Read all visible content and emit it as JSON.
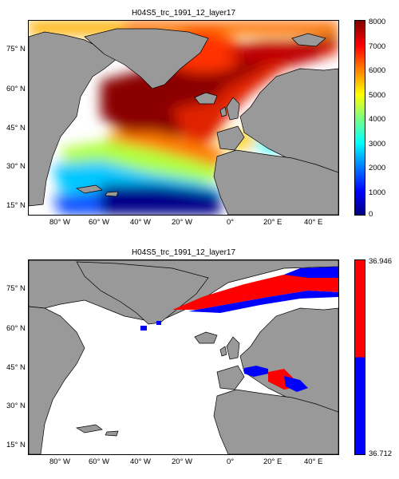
{
  "top_panel": {
    "title": "H04S5_trc_1991_12_layer17",
    "colorbar_ticks": [
      "8000",
      "7000",
      "6000",
      "5000",
      "4000",
      "3000",
      "2000",
      "1000",
      "0"
    ],
    "colorbar_range": [
      0,
      8000
    ],
    "colorbar_colors": [
      "#00007f",
      "#0000ff",
      "#007fff",
      "#00ffff",
      "#7fff7f",
      "#ffff00",
      "#ff7f00",
      "#ff0000",
      "#7f0000"
    ]
  },
  "bottom_panel": {
    "title": "H04S5_trc_1991_12_layer17",
    "colorbar_max": "36.946",
    "colorbar_min": "36.712",
    "colorbar_colors": [
      "#ff0000",
      "#0000ff"
    ]
  },
  "axes": {
    "lon_ticks": [
      "80° W",
      "60° W",
      "40° W",
      "20° W",
      "0°",
      "20° E",
      "40° E"
    ],
    "lat_ticks": [
      "75° N",
      "60° N",
      "45° N",
      "30° N",
      "15° N"
    ]
  },
  "colors": {
    "land": "#999999",
    "ocean_missing": "#ffffff",
    "coast": "#000000"
  }
}
